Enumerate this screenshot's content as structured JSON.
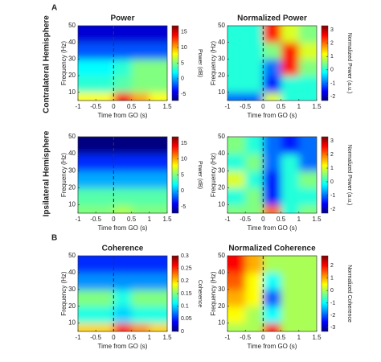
{
  "panel_labels": [
    "A",
    "B"
  ],
  "row_labels": [
    "Contralateral Hemisphere",
    "Ipsilateral Hemisphere"
  ],
  "chart_data": [
    {
      "type": "heatmap",
      "title": "Power",
      "y_label": "Frequency (Hz)",
      "x_label": "Time from GO (s)",
      "colorbar_label": "Power (dB)",
      "xbins": [
        -1,
        -0.5,
        0,
        0.5,
        1,
        1.5
      ],
      "ybins": [
        5,
        10,
        20,
        30,
        40,
        50
      ],
      "z": [
        [
          8,
          8,
          14,
          10,
          8
        ],
        [
          3,
          3,
          4,
          5,
          5
        ],
        [
          2,
          2,
          3,
          5,
          5
        ],
        [
          -2,
          -2,
          -2,
          -2,
          -2
        ],
        [
          -5,
          -5,
          -5,
          -5,
          -5
        ]
      ],
      "xlim": [
        -1,
        1.5
      ],
      "ylim": [
        5,
        50
      ],
      "xticks": [
        -1,
        -0.5,
        0,
        0.5,
        1,
        1.5
      ],
      "yticks": [
        10,
        20,
        30,
        40,
        50
      ],
      "clim": [
        -7,
        17
      ],
      "cticks": [
        -5,
        0,
        5,
        10,
        15
      ],
      "event_x": 0,
      "colormap": "jet"
    },
    {
      "type": "heatmap",
      "title": "Normalized Power",
      "y_label": "Frequency (Hz)",
      "x_label": "Time from GO (s)",
      "colorbar_label": "Normalized Power (a.u.)",
      "xbins": [
        -1,
        -0.5,
        0,
        0.5,
        1,
        1.5
      ],
      "ybins": [
        5,
        10,
        20,
        30,
        40,
        50
      ],
      "z": [
        [
          -1,
          -1,
          1,
          0,
          0
        ],
        [
          0,
          0,
          -1.5,
          0,
          0
        ],
        [
          0,
          0,
          -1,
          2.5,
          0.5
        ],
        [
          0,
          0,
          0.5,
          2.5,
          1
        ],
        [
          0,
          0,
          2.5,
          1,
          0.5
        ]
      ],
      "xlim": [
        -1,
        1.5
      ],
      "ylim": [
        5,
        50
      ],
      "xticks": [
        -1,
        -0.5,
        0,
        0.5,
        1,
        1.5
      ],
      "yticks": [
        10,
        20,
        30,
        40,
        50
      ],
      "clim": [
        -2.3,
        3.3
      ],
      "cticks": [
        -2,
        -1,
        0,
        1,
        2,
        3
      ],
      "event_x": 0,
      "colormap": "jet"
    },
    {
      "type": "heatmap",
      "title": "",
      "y_label": "Frequency (Hz)",
      "x_label": "Time from GO (s)",
      "colorbar_label": "Power (dB)",
      "xbins": [
        -1,
        -0.5,
        0,
        0.5,
        1,
        1.5
      ],
      "ybins": [
        5,
        10,
        20,
        30,
        40,
        50
      ],
      "z": [
        [
          5,
          5,
          6,
          5,
          5
        ],
        [
          4,
          4,
          4,
          4,
          4
        ],
        [
          0,
          0,
          0,
          0,
          0
        ],
        [
          -3,
          -3,
          -3,
          -3,
          -3
        ],
        [
          -7,
          -7,
          -7,
          -7,
          -7
        ]
      ],
      "xlim": [
        -1,
        1.5
      ],
      "ylim": [
        5,
        50
      ],
      "xticks": [
        -1,
        -0.5,
        0,
        0.5,
        1,
        1.5
      ],
      "yticks": [
        10,
        20,
        30,
        40,
        50
      ],
      "clim": [
        -7,
        17
      ],
      "cticks": [
        -5,
        0,
        5,
        10,
        15
      ],
      "event_x": 0,
      "colormap": "jet"
    },
    {
      "type": "heatmap",
      "title": "",
      "y_label": "Frequency (Hz)",
      "x_label": "Time from GO (s)",
      "colorbar_label": "Normalized Power (a.u.)",
      "xbins": [
        -1,
        -0.5,
        0,
        0.5,
        1,
        1.5
      ],
      "ybins": [
        5,
        10,
        20,
        30,
        40,
        50
      ],
      "z": [
        [
          0.5,
          0.5,
          2,
          0,
          0.5
        ],
        [
          0,
          0.5,
          -1.5,
          0,
          0
        ],
        [
          1,
          0,
          -1.5,
          0,
          0.5
        ],
        [
          0,
          0.5,
          -1,
          0,
          -1
        ],
        [
          0.5,
          0,
          -1,
          -1.5,
          -1
        ]
      ],
      "xlim": [
        -1,
        1.5
      ],
      "ylim": [
        5,
        50
      ],
      "xticks": [
        -1,
        -0.5,
        0,
        0.5,
        1,
        1.5
      ],
      "yticks": [
        10,
        20,
        30,
        40,
        50
      ],
      "clim": [
        -2.3,
        3.3
      ],
      "cticks": [
        -2,
        -1,
        0,
        1,
        2,
        3
      ],
      "event_x": 0,
      "colormap": "jet"
    },
    {
      "type": "heatmap",
      "title": "Coherence",
      "y_label": "Frequency (Hz)",
      "x_label": "Time from GO (s)",
      "colorbar_label": "Coherence",
      "xbins": [
        -1,
        -0.5,
        0,
        0.5,
        1,
        1.5
      ],
      "ybins": [
        5,
        10,
        20,
        30,
        40,
        50
      ],
      "z": [
        [
          0.2,
          0.2,
          0.25,
          0.22,
          0.2
        ],
        [
          0.12,
          0.12,
          0.1,
          0.12,
          0.12
        ],
        [
          0.15,
          0.15,
          0.12,
          0.15,
          0.15
        ],
        [
          0.08,
          0.08,
          0.08,
          0.08,
          0.08
        ],
        [
          0.05,
          0.05,
          0.05,
          0.05,
          0.05
        ]
      ],
      "xlim": [
        -1,
        1.5
      ],
      "ylim": [
        5,
        50
      ],
      "xticks": [
        -1,
        -0.5,
        0,
        0.5,
        1,
        1.5
      ],
      "yticks": [
        10,
        20,
        30,
        40,
        50
      ],
      "clim": [
        0,
        0.3
      ],
      "cticks": [
        0,
        0.05,
        0.1,
        0.15,
        0.2,
        0.25,
        0.3
      ],
      "event_x": 0,
      "colormap": "jet"
    },
    {
      "type": "heatmap",
      "title": "Normalized Coherence",
      "y_label": "Frequency (Hz)",
      "x_label": "Time from GO (s)",
      "colorbar_label": "Normalized Coherence",
      "xbins": [
        -1,
        -0.5,
        0,
        0.5,
        1,
        1.5
      ],
      "ybins": [
        5,
        10,
        20,
        30,
        40,
        50
      ],
      "z": [
        [
          0,
          0,
          2,
          0,
          0
        ],
        [
          0.5,
          0,
          -1,
          0,
          0
        ],
        [
          1,
          0.5,
          -2,
          0,
          0
        ],
        [
          1.5,
          0.5,
          -1,
          0,
          0
        ],
        [
          2,
          1,
          0,
          0,
          0
        ]
      ],
      "xlim": [
        -1,
        1.5
      ],
      "ylim": [
        5,
        50
      ],
      "xticks": [
        -1,
        -0.5,
        0,
        0.5,
        1,
        1.5
      ],
      "yticks": [
        10,
        20,
        30,
        40,
        50
      ],
      "clim": [
        -3.3,
        2.8
      ],
      "cticks": [
        -3,
        -2,
        -1,
        0,
        1,
        2
      ],
      "event_x": 0,
      "colormap": "jet"
    }
  ]
}
